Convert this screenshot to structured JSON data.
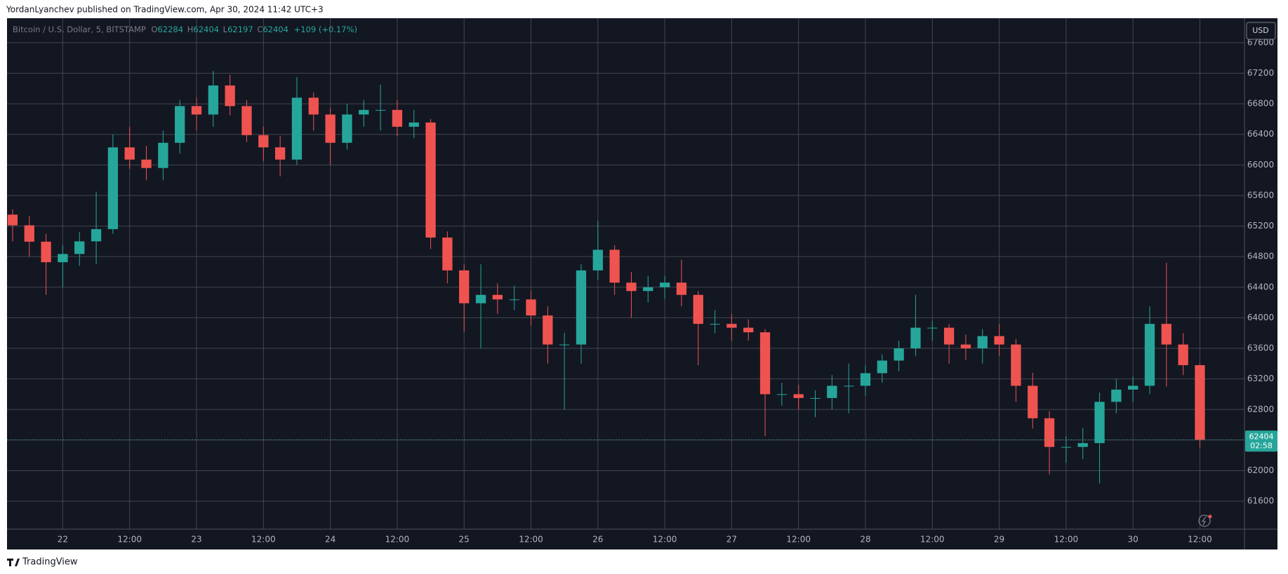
{
  "header": {
    "text": "YordanLyanchev published on TradingView.com, Apr 30, 2024 11:42 UTC+3"
  },
  "footer": {
    "brand": "TradingView"
  },
  "chart_data": {
    "type": "candlestick",
    "title": "Bitcoin / U.S. Dollar, 5, BITSTAMP",
    "ohlc_labels": [
      "O",
      "H",
      "L",
      "C"
    ],
    "ohlc": [
      62284,
      62404,
      62197,
      62404
    ],
    "change": "+109 (+0.17%)",
    "currency": "USD",
    "last_price": 62404,
    "countdown": "02:58",
    "up_color": "#26a69a",
    "down_color": "#ef5350",
    "grid": true,
    "x": [
      -9,
      -6,
      -3,
      0,
      3,
      6,
      9,
      12,
      15,
      18,
      21,
      24,
      27,
      30,
      33,
      36,
      39,
      42,
      45,
      48,
      51,
      54,
      57,
      60,
      63,
      66,
      69,
      72,
      75,
      78,
      81,
      84,
      87,
      90,
      93,
      96,
      99,
      102,
      105,
      108,
      111,
      114,
      117,
      120,
      123,
      126,
      129,
      132,
      135,
      138,
      141,
      144,
      147,
      150,
      153,
      156,
      159,
      162,
      165,
      168,
      171,
      174,
      177,
      180,
      183,
      186,
      189,
      192,
      195,
      198,
      201,
      204
    ],
    "open": [
      65350,
      65210,
      64996,
      64727,
      64835,
      65000,
      65160,
      66230,
      66070,
      65960,
      66290,
      66770,
      66660,
      67040,
      66770,
      66390,
      66230,
      66070,
      66880,
      66660,
      66290,
      66660,
      66720,
      66720,
      66500,
      66555,
      65050,
      64620,
      64190,
      64300,
      64240,
      64240,
      64030,
      63650,
      63650,
      64620,
      64890,
      64460,
      64350,
      64400,
      64460,
      64300,
      63920,
      63920,
      63870,
      63810,
      63000,
      63000,
      62950,
      62950,
      63110,
      63110,
      63275,
      63440,
      63600,
      63870,
      63870,
      63650,
      63600,
      63760,
      63650,
      63110,
      62685,
      62310,
      62310,
      62360,
      62900,
      63060,
      63110,
      63920,
      63650,
      63380
    ],
    "high": [
      65420,
      65330,
      65100,
      64950,
      65120,
      65650,
      66400,
      66500,
      66250,
      66450,
      66850,
      66880,
      67230,
      67180,
      66850,
      66500,
      66380,
      67150,
      66950,
      66750,
      66800,
      66850,
      67050,
      66850,
      66720,
      66600,
      65130,
      64700,
      64700,
      64450,
      64420,
      64350,
      64150,
      63800,
      64700,
      65270,
      64950,
      64600,
      64550,
      64550,
      64760,
      64350,
      64100,
      64050,
      63980,
      63850,
      63150,
      63120,
      63050,
      63250,
      63400,
      63380,
      63520,
      63700,
      64300,
      63960,
      63920,
      63780,
      63850,
      63920,
      63720,
      63280,
      62780,
      62450,
      62560,
      63020,
      63200,
      63230,
      64150,
      64720,
      63800,
      63400
    ],
    "low": [
      65000,
      64800,
      64300,
      64400,
      64680,
      64700,
      65100,
      65950,
      65800,
      65800,
      66150,
      66450,
      66500,
      66650,
      66300,
      66050,
      65850,
      66000,
      66450,
      66000,
      66200,
      66500,
      66450,
      66380,
      66350,
      64900,
      64450,
      63820,
      63600,
      64050,
      64100,
      63900,
      63400,
      62800,
      63400,
      64500,
      64300,
      64000,
      64200,
      64250,
      64150,
      63380,
      63800,
      63700,
      63700,
      62450,
      62850,
      62800,
      62700,
      62800,
      62750,
      62980,
      63150,
      63300,
      63500,
      63700,
      63400,
      63450,
      63400,
      63500,
      62900,
      62550,
      61950,
      62100,
      62150,
      61830,
      62750,
      62900,
      63000,
      63100,
      63250,
      62300
    ],
    "close": [
      65210,
      64996,
      64727,
      64835,
      65000,
      65160,
      66230,
      66070,
      65960,
      66290,
      66770,
      66660,
      67040,
      66770,
      66390,
      66230,
      66070,
      66880,
      66660,
      66290,
      66660,
      66720,
      66720,
      66500,
      66555,
      65050,
      64620,
      64190,
      64300,
      64240,
      64240,
      64030,
      63650,
      63650,
      64620,
      64890,
      64460,
      64350,
      64400,
      64460,
      64300,
      63920,
      63920,
      63870,
      63810,
      63000,
      63000,
      62950,
      62950,
      63110,
      63110,
      63275,
      63440,
      63600,
      63870,
      63870,
      63650,
      63600,
      63760,
      63650,
      63110,
      62685,
      62310,
      62310,
      62360,
      62900,
      63060,
      63110,
      63920,
      63650,
      63380,
      62404
    ],
    "xlim": [
      -10,
      212
    ],
    "ylim": [
      61234,
      67920
    ],
    "xticks": [
      {
        "value": 0,
        "label": "22"
      },
      {
        "value": 12,
        "label": "12:00"
      },
      {
        "value": 24,
        "label": "23"
      },
      {
        "value": 36,
        "label": "12:00"
      },
      {
        "value": 48,
        "label": "24"
      },
      {
        "value": 60,
        "label": "12:00"
      },
      {
        "value": 72,
        "label": "25"
      },
      {
        "value": 84,
        "label": "12:00"
      },
      {
        "value": 96,
        "label": "26"
      },
      {
        "value": 108,
        "label": "12:00"
      },
      {
        "value": 120,
        "label": "27"
      },
      {
        "value": 132,
        "label": "12:00"
      },
      {
        "value": 144,
        "label": "28"
      },
      {
        "value": 156,
        "label": "12:00"
      },
      {
        "value": 168,
        "label": "29"
      },
      {
        "value": 180,
        "label": "12:00"
      },
      {
        "value": 192,
        "label": "30"
      },
      {
        "value": 204,
        "label": "12:00"
      }
    ],
    "yticks": [
      61600,
      62000,
      62400,
      62800,
      63200,
      63600,
      64000,
      64400,
      64800,
      65200,
      65600,
      66000,
      66400,
      66800,
      67200,
      67600
    ]
  }
}
